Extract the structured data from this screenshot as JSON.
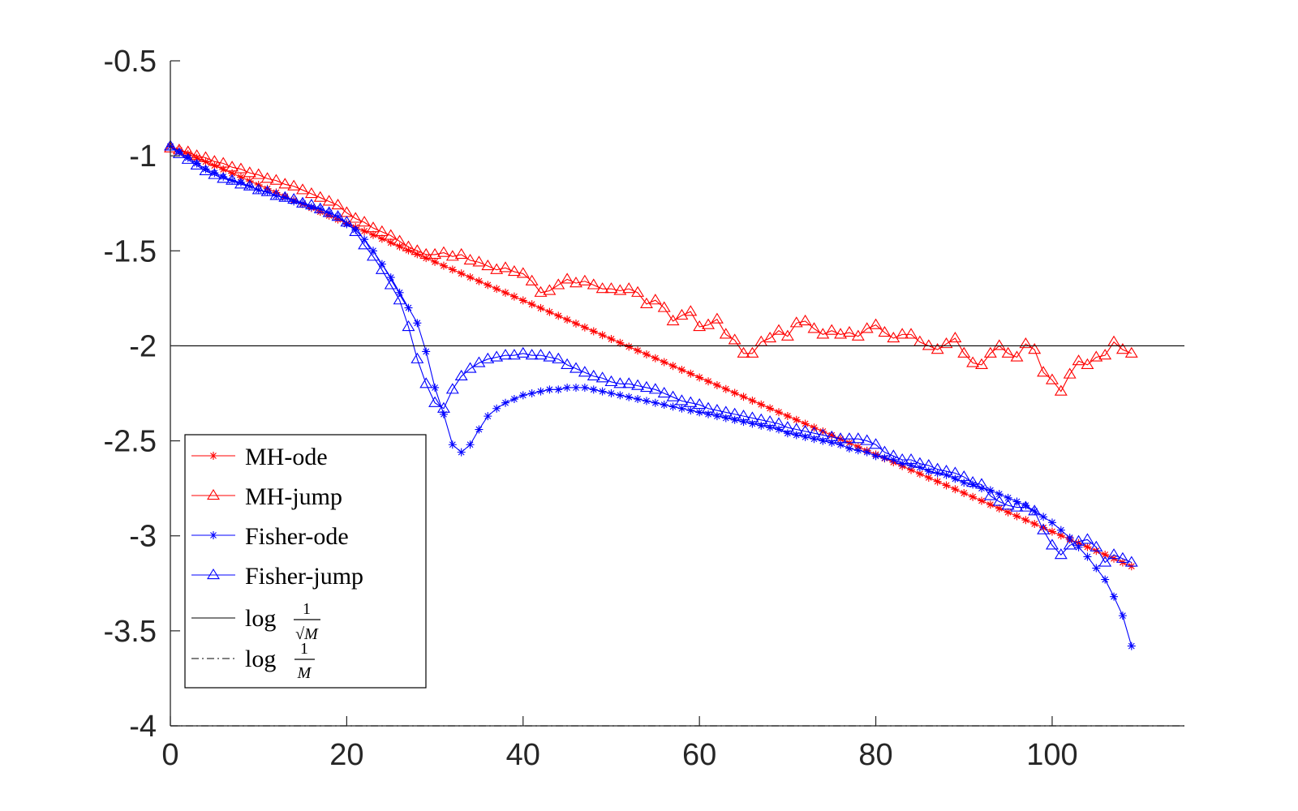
{
  "chart_data": {
    "type": "line",
    "title": "",
    "xlabel": "",
    "ylabel": "",
    "xlim": [
      0,
      115
    ],
    "ylim": [
      -4,
      -0.5
    ],
    "xticks": [
      0,
      20,
      40,
      60,
      80,
      100
    ],
    "yticks": [
      -4,
      -3.5,
      -3,
      -2.5,
      -2,
      -1.5,
      -1,
      -0.5
    ],
    "xtick_labels": [
      "0",
      "20",
      "40",
      "60",
      "80",
      "100"
    ],
    "ytick_labels": [
      "-4",
      "-3.5",
      "-3",
      "-2.5",
      "-2",
      "-1.5",
      "-1",
      "-0.5"
    ],
    "legend_position": "bottom-left",
    "series": [
      {
        "name": "MH-ode",
        "color": "#ff0000",
        "marker": "star",
        "line": "solid",
        "generator": "linear",
        "x_range": [
          0,
          109
        ],
        "y_start": -0.95,
        "y_end": -3.16
      },
      {
        "name": "MH-jump",
        "color": "#ff0000",
        "marker": "triangle",
        "line": "solid",
        "x": [
          0,
          1,
          2,
          3,
          4,
          5,
          6,
          7,
          8,
          9,
          10,
          11,
          12,
          13,
          14,
          15,
          16,
          17,
          18,
          19,
          20,
          21,
          22,
          23,
          24,
          25,
          26,
          27,
          28,
          29,
          30,
          31,
          32,
          33,
          34,
          35,
          36,
          37,
          38,
          39,
          40,
          41,
          42,
          43,
          44,
          45,
          46,
          47,
          48,
          49,
          50,
          51,
          52,
          53,
          54,
          55,
          56,
          57,
          58,
          59,
          60,
          61,
          62,
          63,
          64,
          65,
          66,
          67,
          68,
          69,
          70,
          71,
          72,
          73,
          74,
          75,
          76,
          77,
          78,
          79,
          80,
          81,
          82,
          83,
          84,
          85,
          86,
          87,
          88,
          89,
          90,
          91,
          92,
          93,
          94,
          95,
          96,
          97,
          98,
          99,
          100,
          101,
          102,
          103,
          104,
          105,
          106,
          107,
          108,
          109
        ],
        "y": [
          -0.96,
          -0.97,
          -0.98,
          -1.0,
          -1.01,
          -1.03,
          -1.04,
          -1.06,
          -1.07,
          -1.09,
          -1.1,
          -1.12,
          -1.13,
          -1.15,
          -1.16,
          -1.18,
          -1.2,
          -1.22,
          -1.24,
          -1.26,
          -1.3,
          -1.33,
          -1.35,
          -1.38,
          -1.4,
          -1.42,
          -1.45,
          -1.48,
          -1.5,
          -1.52,
          -1.52,
          -1.51,
          -1.53,
          -1.52,
          -1.55,
          -1.56,
          -1.58,
          -1.6,
          -1.59,
          -1.61,
          -1.62,
          -1.66,
          -1.72,
          -1.71,
          -1.68,
          -1.65,
          -1.67,
          -1.66,
          -1.68,
          -1.7,
          -1.7,
          -1.71,
          -1.7,
          -1.72,
          -1.78,
          -1.76,
          -1.8,
          -1.87,
          -1.84,
          -1.82,
          -1.9,
          -1.89,
          -1.86,
          -1.94,
          -1.97,
          -2.04,
          -2.04,
          -1.98,
          -1.96,
          -1.92,
          -1.95,
          -1.88,
          -1.87,
          -1.91,
          -1.94,
          -1.92,
          -1.94,
          -1.93,
          -1.95,
          -1.91,
          -1.89,
          -1.93,
          -1.96,
          -1.94,
          -1.94,
          -1.98,
          -2.0,
          -2.02,
          -1.99,
          -1.96,
          -2.04,
          -2.09,
          -2.1,
          -2.04,
          -2.0,
          -2.04,
          -2.06,
          -1.99,
          -2.02,
          -2.14,
          -2.18,
          -2.24,
          -2.15,
          -2.08,
          -2.1,
          -2.06,
          -2.05,
          -1.98,
          -2.02,
          -2.04
        ]
      },
      {
        "name": "Fisher-ode",
        "color": "#0000ff",
        "marker": "star",
        "line": "solid",
        "x": [
          0,
          1,
          2,
          3,
          4,
          5,
          6,
          7,
          8,
          9,
          10,
          11,
          12,
          13,
          14,
          15,
          16,
          17,
          18,
          19,
          20,
          21,
          22,
          23,
          24,
          25,
          26,
          27,
          28,
          29,
          30,
          31,
          32,
          33,
          34,
          35,
          36,
          37,
          38,
          39,
          40,
          41,
          42,
          43,
          44,
          45,
          46,
          47,
          48,
          49,
          50,
          51,
          52,
          53,
          54,
          55,
          56,
          57,
          58,
          59,
          60,
          61,
          62,
          63,
          64,
          65,
          66,
          67,
          68,
          69,
          70,
          71,
          72,
          73,
          74,
          75,
          76,
          77,
          78,
          79,
          80,
          81,
          82,
          83,
          84,
          85,
          86,
          87,
          88,
          89,
          90,
          91,
          92,
          93,
          94,
          95,
          96,
          97,
          98,
          99,
          100,
          101,
          102,
          103,
          104,
          105,
          106,
          107,
          108,
          109
        ],
        "y": [
          -0.95,
          -0.98,
          -1.01,
          -1.04,
          -1.07,
          -1.09,
          -1.11,
          -1.13,
          -1.14,
          -1.16,
          -1.18,
          -1.19,
          -1.21,
          -1.22,
          -1.24,
          -1.25,
          -1.27,
          -1.28,
          -1.3,
          -1.32,
          -1.36,
          -1.39,
          -1.44,
          -1.5,
          -1.57,
          -1.64,
          -1.72,
          -1.8,
          -1.88,
          -2.03,
          -2.22,
          -2.36,
          -2.52,
          -2.56,
          -2.52,
          -2.44,
          -2.37,
          -2.33,
          -2.3,
          -2.28,
          -2.26,
          -2.25,
          -2.24,
          -2.23,
          -2.23,
          -2.22,
          -2.22,
          -2.22,
          -2.23,
          -2.24,
          -2.25,
          -2.26,
          -2.27,
          -2.28,
          -2.29,
          -2.3,
          -2.31,
          -2.32,
          -2.33,
          -2.34,
          -2.35,
          -2.36,
          -2.37,
          -2.38,
          -2.39,
          -2.4,
          -2.41,
          -2.42,
          -2.43,
          -2.44,
          -2.46,
          -2.47,
          -2.48,
          -2.49,
          -2.5,
          -2.51,
          -2.52,
          -2.54,
          -2.55,
          -2.56,
          -2.58,
          -2.59,
          -2.6,
          -2.62,
          -2.63,
          -2.64,
          -2.66,
          -2.67,
          -2.68,
          -2.7,
          -2.72,
          -2.73,
          -2.75,
          -2.76,
          -2.78,
          -2.8,
          -2.82,
          -2.84,
          -2.87,
          -2.9,
          -2.93,
          -2.97,
          -3.01,
          -3.06,
          -3.11,
          -3.17,
          -3.23,
          -3.32,
          -3.42,
          -3.58
        ]
      },
      {
        "name": "Fisher-jump",
        "color": "#0000ff",
        "marker": "triangle",
        "line": "solid",
        "x": [
          0,
          1,
          2,
          3,
          4,
          5,
          6,
          7,
          8,
          9,
          10,
          11,
          12,
          13,
          14,
          15,
          16,
          17,
          18,
          19,
          20,
          21,
          22,
          23,
          24,
          25,
          26,
          27,
          28,
          29,
          30,
          31,
          32,
          33,
          34,
          35,
          36,
          37,
          38,
          39,
          40,
          41,
          42,
          43,
          44,
          45,
          46,
          47,
          48,
          49,
          50,
          51,
          52,
          53,
          54,
          55,
          56,
          57,
          58,
          59,
          60,
          61,
          62,
          63,
          64,
          65,
          66,
          67,
          68,
          69,
          70,
          71,
          72,
          73,
          74,
          75,
          76,
          77,
          78,
          79,
          80,
          81,
          82,
          83,
          84,
          85,
          86,
          87,
          88,
          89,
          90,
          91,
          92,
          93,
          94,
          95,
          96,
          97,
          98,
          99,
          100,
          101,
          102,
          103,
          104,
          105,
          106,
          107,
          108,
          109
        ],
        "y": [
          -0.95,
          -0.99,
          -1.02,
          -1.05,
          -1.08,
          -1.1,
          -1.12,
          -1.13,
          -1.15,
          -1.16,
          -1.18,
          -1.19,
          -1.21,
          -1.22,
          -1.23,
          -1.25,
          -1.26,
          -1.28,
          -1.3,
          -1.32,
          -1.35,
          -1.4,
          -1.47,
          -1.53,
          -1.6,
          -1.68,
          -1.76,
          -1.9,
          -2.07,
          -2.2,
          -2.3,
          -2.33,
          -2.23,
          -2.16,
          -2.12,
          -2.09,
          -2.07,
          -2.06,
          -2.05,
          -2.05,
          -2.04,
          -2.05,
          -2.05,
          -2.06,
          -2.07,
          -2.1,
          -2.12,
          -2.14,
          -2.16,
          -2.17,
          -2.19,
          -2.2,
          -2.2,
          -2.21,
          -2.22,
          -2.23,
          -2.25,
          -2.27,
          -2.29,
          -2.3,
          -2.31,
          -2.33,
          -2.34,
          -2.35,
          -2.36,
          -2.37,
          -2.38,
          -2.39,
          -2.4,
          -2.41,
          -2.43,
          -2.44,
          -2.45,
          -2.46,
          -2.47,
          -2.48,
          -2.49,
          -2.49,
          -2.49,
          -2.5,
          -2.52,
          -2.56,
          -2.58,
          -2.6,
          -2.6,
          -2.62,
          -2.63,
          -2.65,
          -2.66,
          -2.67,
          -2.69,
          -2.72,
          -2.73,
          -2.79,
          -2.82,
          -2.84,
          -2.85,
          -2.85,
          -2.87,
          -2.97,
          -3.05,
          -3.1,
          -3.05,
          -3.03,
          -3.02,
          -3.06,
          -3.14,
          -3.1,
          -3.12,
          -3.14
        ]
      },
      {
        "name": "log 1/√M",
        "color": "#000000",
        "marker": "none",
        "line": "solid",
        "x": [
          0,
          115
        ],
        "y": [
          -2,
          -2
        ]
      },
      {
        "name": "log 1/M",
        "color": "#000000",
        "marker": "none",
        "line": "dashdot",
        "x": [
          0,
          115
        ],
        "y": [
          -4,
          -4
        ]
      }
    ],
    "legend": {
      "entries": [
        "MH-ode",
        "MH-jump",
        "Fisher-ode",
        "Fisher-jump",
        "log 1/√M",
        "log 1/M"
      ],
      "frac_numerator": "1",
      "sqrt_denominator": "√M",
      "plain_denominator": "M",
      "log_word": "log"
    }
  }
}
